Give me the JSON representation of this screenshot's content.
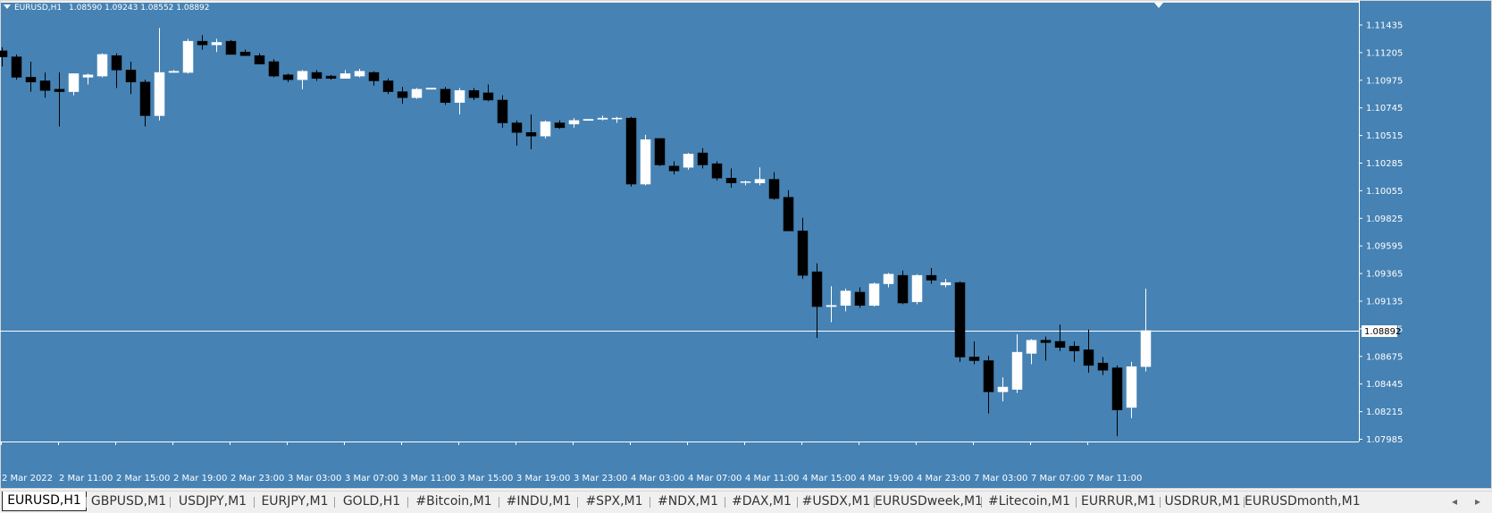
{
  "chart": {
    "symbol": "EURUSD,H1",
    "ohlc_header": {
      "open": "1.08590",
      "high": "1.09243",
      "low": "1.08552",
      "close": "1.08892"
    },
    "current_price_label": "1.08892",
    "background_color": "#4682b4",
    "bull_color": "#ffffff",
    "bear_color": "#000000"
  },
  "chart_data": {
    "type": "candlestick",
    "y_ticks": [
      "1.11435",
      "1.11205",
      "1.10975",
      "1.10745",
      "1.10515",
      "1.10285",
      "1.10055",
      "1.09825",
      "1.09595",
      "1.09365",
      "1.09135",
      "1.08905",
      "1.08675",
      "1.08445",
      "1.08215",
      "1.07985"
    ],
    "x_ticks": [
      "2 Mar 2022",
      "2 Mar 11:00",
      "2 Mar 15:00",
      "2 Mar 19:00",
      "2 Mar 23:00",
      "3 Mar 03:00",
      "3 Mar 07:00",
      "3 Mar 11:00",
      "3 Mar 15:00",
      "3 Mar 19:00",
      "3 Mar 23:00",
      "4 Mar 03:00",
      "4 Mar 07:00",
      "4 Mar 11:00",
      "4 Mar 15:00",
      "4 Mar 19:00",
      "4 Mar 23:00",
      "7 Mar 03:00",
      "7 Mar 07:00",
      "7 Mar 11:00"
    ],
    "ylim": [
      1.07985,
      1.11435
    ],
    "current_price": 1.08892,
    "candles": [
      {
        "o": 1.1122,
        "h": 1.1125,
        "l": 1.1109,
        "c": 1.1117
      },
      {
        "o": 1.1117,
        "h": 1.1119,
        "l": 1.1098,
        "c": 1.11
      },
      {
        "o": 1.11,
        "h": 1.1113,
        "l": 1.1088,
        "c": 1.1096
      },
      {
        "o": 1.1097,
        "h": 1.1104,
        "l": 1.1083,
        "c": 1.1089
      },
      {
        "o": 1.109,
        "h": 1.1104,
        "l": 1.1059,
        "c": 1.1088
      },
      {
        "o": 1.1088,
        "h": 1.1103,
        "l": 1.1085,
        "c": 1.1103
      },
      {
        "o": 1.11,
        "h": 1.1103,
        "l": 1.1094,
        "c": 1.1102
      },
      {
        "o": 1.1101,
        "h": 1.112,
        "l": 1.11,
        "c": 1.1119
      },
      {
        "o": 1.1118,
        "h": 1.112,
        "l": 1.1091,
        "c": 1.1106
      },
      {
        "o": 1.1106,
        "h": 1.1113,
        "l": 1.1086,
        "c": 1.1096
      },
      {
        "o": 1.1096,
        "h": 1.1098,
        "l": 1.1059,
        "c": 1.1068
      },
      {
        "o": 1.1068,
        "h": 1.1141,
        "l": 1.1064,
        "c": 1.1104
      },
      {
        "o": 1.1104,
        "h": 1.1106,
        "l": 1.1104,
        "c": 1.1105
      },
      {
        "o": 1.1104,
        "h": 1.1132,
        "l": 1.1103,
        "c": 1.113
      },
      {
        "o": 1.113,
        "h": 1.1135,
        "l": 1.1123,
        "c": 1.1127
      },
      {
        "o": 1.1127,
        "h": 1.1132,
        "l": 1.1121,
        "c": 1.1129
      },
      {
        "o": 1.113,
        "h": 1.1131,
        "l": 1.1119,
        "c": 1.1119
      },
      {
        "o": 1.1121,
        "h": 1.1123,
        "l": 1.1118,
        "c": 1.1118
      },
      {
        "o": 1.1118,
        "h": 1.112,
        "l": 1.1111,
        "c": 1.1111
      },
      {
        "o": 1.1113,
        "h": 1.1115,
        "l": 1.11,
        "c": 1.1101
      },
      {
        "o": 1.1102,
        "h": 1.1103,
        "l": 1.1096,
        "c": 1.1098
      },
      {
        "o": 1.1098,
        "h": 1.1106,
        "l": 1.109,
        "c": 1.1105
      },
      {
        "o": 1.1104,
        "h": 1.1106,
        "l": 1.1097,
        "c": 1.1099
      },
      {
        "o": 1.1101,
        "h": 1.1102,
        "l": 1.1098,
        "c": 1.1099
      },
      {
        "o": 1.1099,
        "h": 1.1106,
        "l": 1.1099,
        "c": 1.1103
      },
      {
        "o": 1.1101,
        "h": 1.1107,
        "l": 1.11,
        "c": 1.1105
      },
      {
        "o": 1.1104,
        "h": 1.1105,
        "l": 1.1093,
        "c": 1.1097
      },
      {
        "o": 1.1097,
        "h": 1.1099,
        "l": 1.1086,
        "c": 1.1088
      },
      {
        "o": 1.1088,
        "h": 1.1092,
        "l": 1.1078,
        "c": 1.1083
      },
      {
        "o": 1.1083,
        "h": 1.1091,
        "l": 1.1082,
        "c": 1.109
      },
      {
        "o": 1.109,
        "h": 1.1091,
        "l": 1.109,
        "c": 1.1091
      },
      {
        "o": 1.109,
        "h": 1.1092,
        "l": 1.1077,
        "c": 1.1079
      },
      {
        "o": 1.1079,
        "h": 1.1091,
        "l": 1.1069,
        "c": 1.1089
      },
      {
        "o": 1.1089,
        "h": 1.1091,
        "l": 1.1081,
        "c": 1.1083
      },
      {
        "o": 1.1087,
        "h": 1.1094,
        "l": 1.108,
        "c": 1.1081
      },
      {
        "o": 1.1081,
        "h": 1.1085,
        "l": 1.1058,
        "c": 1.1062
      },
      {
        "o": 1.1062,
        "h": 1.1064,
        "l": 1.1043,
        "c": 1.1054
      },
      {
        "o": 1.1054,
        "h": 1.1069,
        "l": 1.104,
        "c": 1.1051
      },
      {
        "o": 1.1051,
        "h": 1.1064,
        "l": 1.1049,
        "c": 1.1063
      },
      {
        "o": 1.1062,
        "h": 1.1064,
        "l": 1.1057,
        "c": 1.1058
      },
      {
        "o": 1.1061,
        "h": 1.1066,
        "l": 1.1058,
        "c": 1.1064
      },
      {
        "o": 1.1064,
        "h": 1.1065,
        "l": 1.1064,
        "c": 1.1065
      },
      {
        "o": 1.1065,
        "h": 1.1068,
        "l": 1.1064,
        "c": 1.1066
      },
      {
        "o": 1.1066,
        "h": 1.1067,
        "l": 1.1062,
        "c": 1.1066
      },
      {
        "o": 1.1066,
        "h": 1.1067,
        "l": 1.1009,
        "c": 1.1011
      },
      {
        "o": 1.1011,
        "h": 1.1052,
        "l": 1.101,
        "c": 1.1048
      },
      {
        "o": 1.1049,
        "h": 1.1049,
        "l": 1.1026,
        "c": 1.1027
      },
      {
        "o": 1.1026,
        "h": 1.103,
        "l": 1.1019,
        "c": 1.1022
      },
      {
        "o": 1.1025,
        "h": 1.1037,
        "l": 1.1023,
        "c": 1.1036
      },
      {
        "o": 1.1037,
        "h": 1.1041,
        "l": 1.1024,
        "c": 1.1027
      },
      {
        "o": 1.1028,
        "h": 1.103,
        "l": 1.1014,
        "c": 1.1016
      },
      {
        "o": 1.1016,
        "h": 1.1024,
        "l": 1.1008,
        "c": 1.1012
      },
      {
        "o": 1.1013,
        "h": 1.1014,
        "l": 1.101,
        "c": 1.1013
      },
      {
        "o": 1.1012,
        "h": 1.1025,
        "l": 1.101,
        "c": 1.1015
      },
      {
        "o": 1.1015,
        "h": 1.1021,
        "l": 1.0998,
        "c": 1.0999
      },
      {
        "o": 1.1,
        "h": 1.1006,
        "l": 1.0972,
        "c": 1.0972
      },
      {
        "o": 1.0972,
        "h": 1.0983,
        "l": 1.0932,
        "c": 1.0935
      },
      {
        "o": 1.0938,
        "h": 1.0945,
        "l": 1.0883,
        "c": 1.0909
      },
      {
        "o": 1.0909,
        "h": 1.0926,
        "l": 1.0896,
        "c": 1.091
      },
      {
        "o": 1.091,
        "h": 1.0924,
        "l": 1.0905,
        "c": 1.0922
      },
      {
        "o": 1.0921,
        "h": 1.0925,
        "l": 1.0908,
        "c": 1.091
      },
      {
        "o": 1.091,
        "h": 1.0929,
        "l": 1.0909,
        "c": 1.0928
      },
      {
        "o": 1.0928,
        "h": 1.0937,
        "l": 1.0925,
        "c": 1.0936
      },
      {
        "o": 1.0935,
        "h": 1.0939,
        "l": 1.0911,
        "c": 1.0912
      },
      {
        "o": 1.0913,
        "h": 1.0936,
        "l": 1.0911,
        "c": 1.0935
      },
      {
        "o": 1.0935,
        "h": 1.0941,
        "l": 1.0928,
        "c": 1.0931
      },
      {
        "o": 1.0927,
        "h": 1.0932,
        "l": 1.0925,
        "c": 1.0929
      },
      {
        "o": 1.0929,
        "h": 1.093,
        "l": 1.0863,
        "c": 1.0867
      },
      {
        "o": 1.0867,
        "h": 1.088,
        "l": 1.0861,
        "c": 1.0864
      },
      {
        "o": 1.0864,
        "h": 1.0868,
        "l": 1.082,
        "c": 1.0838
      },
      {
        "o": 1.0838,
        "h": 1.085,
        "l": 1.083,
        "c": 1.0842
      },
      {
        "o": 1.084,
        "h": 1.0886,
        "l": 1.0837,
        "c": 1.0871
      },
      {
        "o": 1.087,
        "h": 1.0882,
        "l": 1.0861,
        "c": 1.0881
      },
      {
        "o": 1.0881,
        "h": 1.0884,
        "l": 1.0864,
        "c": 1.0879
      },
      {
        "o": 1.088,
        "h": 1.0894,
        "l": 1.0872,
        "c": 1.0875
      },
      {
        "o": 1.0876,
        "h": 1.088,
        "l": 1.0863,
        "c": 1.0872
      },
      {
        "o": 1.0873,
        "h": 1.089,
        "l": 1.0854,
        "c": 1.086
      },
      {
        "o": 1.0862,
        "h": 1.0867,
        "l": 1.0852,
        "c": 1.0856
      },
      {
        "o": 1.0858,
        "h": 1.086,
        "l": 1.0801,
        "c": 1.0823
      },
      {
        "o": 1.0825,
        "h": 1.0863,
        "l": 1.0816,
        "c": 1.0859
      },
      {
        "o": 1.0859,
        "h": 1.0924,
        "l": 1.0855,
        "c": 1.0889
      }
    ]
  },
  "tabs": [
    {
      "label": "EURUSD,H1",
      "active": true
    },
    {
      "label": "GBPUSD,M1",
      "active": false
    },
    {
      "label": "USDJPY,M1",
      "active": false
    },
    {
      "label": "EURJPY,M1",
      "active": false
    },
    {
      "label": "GOLD,H1",
      "active": false
    },
    {
      "label": "#Bitcoin,M1",
      "active": false
    },
    {
      "label": "#INDU,M1",
      "active": false
    },
    {
      "label": "#SPX,M1",
      "active": false
    },
    {
      "label": "#NDX,M1",
      "active": false
    },
    {
      "label": "#DAX,M1",
      "active": false
    },
    {
      "label": "#USDX,M1",
      "active": false
    },
    {
      "label": "EURUSDweek,M1",
      "active": false
    },
    {
      "label": "#Litecoin,M1",
      "active": false
    },
    {
      "label": "EURRUR,M1",
      "active": false
    },
    {
      "label": "USDRUR,M1",
      "active": false
    },
    {
      "label": "EURUSDmonth,M1",
      "active": false
    }
  ],
  "tab_scroll": {
    "left_icon": "◂",
    "right_icon": "▸"
  }
}
